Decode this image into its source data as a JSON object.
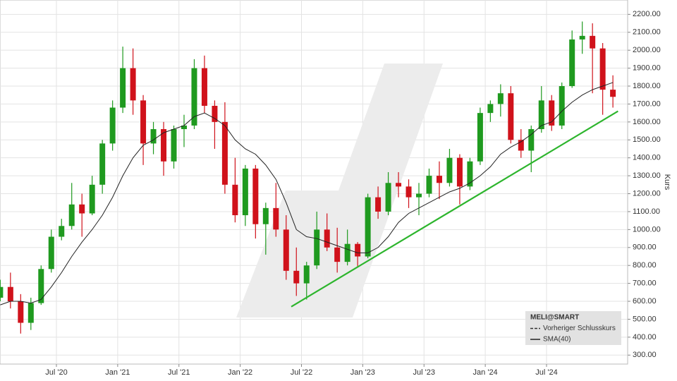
{
  "chart_data": {
    "type": "candlestick",
    "y_label": "Kurs",
    "x": [
      "2020-01",
      "2020-02",
      "2020-03",
      "2020-04",
      "2020-05",
      "2020-06",
      "2020-07",
      "2020-08",
      "2020-09",
      "2020-10",
      "2020-11",
      "2020-12",
      "2021-01",
      "2021-02",
      "2021-03",
      "2021-04",
      "2021-05",
      "2021-06",
      "2021-07",
      "2021-08",
      "2021-09",
      "2021-10",
      "2021-11",
      "2021-12",
      "2022-01",
      "2022-02",
      "2022-03",
      "2022-04",
      "2022-05",
      "2022-06",
      "2022-07",
      "2022-08",
      "2022-09",
      "2022-10",
      "2022-11",
      "2022-12",
      "2023-01",
      "2023-02",
      "2023-03",
      "2023-04",
      "2023-05",
      "2023-06",
      "2023-07",
      "2023-08",
      "2023-09",
      "2023-10",
      "2023-11",
      "2023-12",
      "2024-01",
      "2024-02",
      "2024-03",
      "2024-04",
      "2024-05",
      "2024-06",
      "2024-07",
      "2024-08",
      "2024-09",
      "2024-10",
      "2024-11",
      "2024-12",
      "2025-01"
    ],
    "series": [
      {
        "name": "MELI@SMART",
        "up_color": "#1f9a1f",
        "down_color": "#d0121b",
        "open": [
          620,
          680,
          600,
          480,
          590,
          780,
          960,
          1020,
          1140,
          1090,
          1250,
          1480,
          1680,
          1900,
          1720,
          1480,
          1560,
          1380,
          1560,
          1580,
          1900,
          1690,
          1600,
          1250,
          1080,
          1340,
          1030,
          1120,
          1000,
          770,
          700,
          800,
          1000,
          900,
          820,
          920,
          850,
          1180,
          1100,
          1260,
          1240,
          1180,
          1200,
          1300,
          1260,
          1400,
          1240,
          1380,
          1650,
          1700,
          1760,
          1500,
          1440,
          1560,
          1720,
          1580,
          1800,
          2060,
          2080,
          2010,
          1780
        ],
        "high": [
          720,
          760,
          640,
          620,
          800,
          1000,
          1060,
          1260,
          1200,
          1300,
          1500,
          1720,
          2020,
          2010,
          1750,
          1600,
          1600,
          1580,
          1640,
          1950,
          1970,
          1720,
          1710,
          1400,
          1360,
          1360,
          1150,
          1260,
          1080,
          900,
          820,
          1100,
          1090,
          1010,
          1000,
          930,
          1200,
          1240,
          1320,
          1320,
          1280,
          1260,
          1340,
          1380,
          1450,
          1420,
          1400,
          1680,
          1720,
          1810,
          1800,
          1560,
          1580,
          1800,
          1750,
          1820,
          2110,
          2160,
          2150,
          2040,
          1860
        ],
        "low": [
          600,
          560,
          420,
          440,
          580,
          760,
          940,
          1000,
          960,
          1080,
          1200,
          1440,
          1650,
          1640,
          1360,
          1420,
          1300,
          1340,
          1460,
          1560,
          1650,
          1450,
          1200,
          1040,
          1020,
          950,
          860,
          960,
          720,
          630,
          610,
          780,
          880,
          760,
          800,
          790,
          840,
          1060,
          1080,
          1180,
          1120,
          1080,
          1180,
          1170,
          1240,
          1140,
          1220,
          1360,
          1600,
          1630,
          1480,
          1400,
          1320,
          1540,
          1550,
          1560,
          1790,
          1980,
          1760,
          1640,
          1680
        ],
        "close": [
          680,
          600,
          480,
          590,
          780,
          960,
          1020,
          1140,
          1090,
          1250,
          1480,
          1680,
          1900,
          1720,
          1480,
          1560,
          1380,
          1560,
          1580,
          1900,
          1690,
          1600,
          1250,
          1080,
          1340,
          1030,
          1120,
          1000,
          770,
          700,
          800,
          1000,
          900,
          820,
          920,
          850,
          1180,
          1100,
          1260,
          1240,
          1180,
          1200,
          1300,
          1260,
          1400,
          1240,
          1380,
          1650,
          1700,
          1760,
          1500,
          1440,
          1560,
          1720,
          1580,
          1800,
          2060,
          2080,
          2010,
          1780,
          1740
        ]
      },
      {
        "name": "Vorheriger Schlusskurs",
        "color": "#333333",
        "dashed": true
      },
      {
        "name": "SMA(40)",
        "color": "#222222",
        "values": [
          580,
          600,
          600,
          590,
          610,
          680,
          760,
          850,
          930,
          1000,
          1080,
          1180,
          1300,
          1400,
          1470,
          1500,
          1540,
          1560,
          1580,
          1630,
          1650,
          1620,
          1580,
          1500,
          1450,
          1420,
          1360,
          1280,
          1150,
          1000,
          960,
          950,
          930,
          910,
          890,
          870,
          870,
          900,
          960,
          1040,
          1090,
          1120,
          1150,
          1180,
          1210,
          1230,
          1260,
          1300,
          1350,
          1420,
          1460,
          1490,
          1530,
          1580,
          1600,
          1660,
          1710,
          1750,
          1780,
          1800,
          1820
        ]
      }
    ],
    "trendline": {
      "color": "#2db52d",
      "x": [
        "2022-06",
        "2025-02"
      ],
      "values": [
        570,
        1660
      ]
    },
    "ylim": [
      250,
      2280
    ],
    "yticks": [
      {
        "value": 300,
        "label": "300.00"
      },
      {
        "value": 400,
        "label": "400.00"
      },
      {
        "value": 500,
        "label": "500.00"
      },
      {
        "value": 600,
        "label": "600.00"
      },
      {
        "value": 700,
        "label": "700.00"
      },
      {
        "value": 800,
        "label": "800.00"
      },
      {
        "value": 900,
        "label": "900.00"
      },
      {
        "value": 1000,
        "label": "1000.00"
      },
      {
        "value": 1100,
        "label": "1100.00"
      },
      {
        "value": 1200,
        "label": "1200.00"
      },
      {
        "value": 1300,
        "label": "1300.00"
      },
      {
        "value": 1400,
        "label": "1400.00"
      },
      {
        "value": 1500,
        "label": "1500.00"
      },
      {
        "value": 1600,
        "label": "1600.00"
      },
      {
        "value": 1700,
        "label": "1700.00"
      },
      {
        "value": 1800,
        "label": "1800.00"
      },
      {
        "value": 1900,
        "label": "1900.00"
      },
      {
        "value": 2000,
        "label": "2000.00"
      },
      {
        "value": 2100,
        "label": "2100.00"
      },
      {
        "value": 2200,
        "label": "2200.00"
      }
    ],
    "xticks": [
      {
        "value": "2020-07",
        "label": "Jul '20"
      },
      {
        "value": "2021-01",
        "label": "Jan '21"
      },
      {
        "value": "2021-07",
        "label": "Jul '21"
      },
      {
        "value": "2022-01",
        "label": "Jan '22"
      },
      {
        "value": "2022-07",
        "label": "Jul '22"
      },
      {
        "value": "2023-01",
        "label": "Jan '23"
      },
      {
        "value": "2023-07",
        "label": "Jul '23"
      },
      {
        "value": "2024-01",
        "label": "Jan '24"
      },
      {
        "value": "2024-07",
        "label": "Jul '24"
      }
    ],
    "grid": true
  }
}
